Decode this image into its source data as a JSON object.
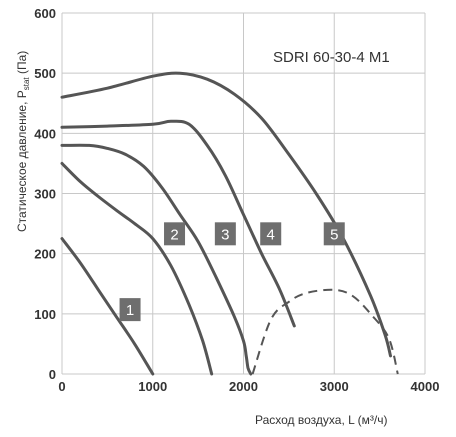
{
  "chart_data": {
    "type": "line",
    "model_label": "SDRI 60-30-4 M1",
    "xlabel": "Расход воздуха, L (м³/ч)",
    "ylabel_main": "Статическое давление, P",
    "ylabel_sub": "stat",
    "ylabel_unit": " (Па)",
    "xlim": [
      0,
      4000
    ],
    "ylim": [
      0,
      600
    ],
    "x_ticks": [
      "0",
      "1000",
      "2000",
      "3000",
      "4000"
    ],
    "y_ticks": [
      "0",
      "100",
      "200",
      "300",
      "400",
      "500",
      "600"
    ],
    "grid": true,
    "series": [
      {
        "name": "1",
        "points": [
          [
            0,
            225
          ],
          [
            200,
            185
          ],
          [
            400,
            140
          ],
          [
            600,
            95
          ],
          [
            800,
            50
          ],
          [
            1000,
            0
          ]
        ]
      },
      {
        "name": "2",
        "points": [
          [
            0,
            350
          ],
          [
            200,
            320
          ],
          [
            400,
            295
          ],
          [
            600,
            272
          ],
          [
            800,
            250
          ],
          [
            1000,
            225
          ],
          [
            1200,
            180
          ],
          [
            1400,
            115
          ],
          [
            1550,
            55
          ],
          [
            1650,
            0
          ]
        ]
      },
      {
        "name": "3",
        "points": [
          [
            0,
            380
          ],
          [
            300,
            380
          ],
          [
            500,
            375
          ],
          [
            700,
            365
          ],
          [
            900,
            345
          ],
          [
            1100,
            310
          ],
          [
            1300,
            265
          ],
          [
            1500,
            220
          ],
          [
            1700,
            160
          ],
          [
            1900,
            95
          ],
          [
            2000,
            55
          ],
          [
            2030,
            30
          ],
          [
            2050,
            10
          ],
          [
            2080,
            0
          ]
        ]
      },
      {
        "name": "4",
        "points": [
          [
            0,
            410
          ],
          [
            500,
            412
          ],
          [
            1000,
            415
          ],
          [
            1200,
            420
          ],
          [
            1400,
            415
          ],
          [
            1600,
            380
          ],
          [
            1800,
            330
          ],
          [
            2000,
            265
          ],
          [
            2200,
            200
          ],
          [
            2400,
            140
          ],
          [
            2560,
            80
          ]
        ]
      },
      {
        "name": "5",
        "points": [
          [
            0,
            460
          ],
          [
            500,
            475
          ],
          [
            1000,
            495
          ],
          [
            1300,
            500
          ],
          [
            1600,
            490
          ],
          [
            1900,
            465
          ],
          [
            2200,
            425
          ],
          [
            2500,
            365
          ],
          [
            2800,
            300
          ],
          [
            3100,
            225
          ],
          [
            3400,
            130
          ],
          [
            3560,
            65
          ],
          [
            3620,
            30
          ]
        ]
      }
    ],
    "dashed_curve": {
      "points": [
        [
          2100,
          0
        ],
        [
          2300,
          90
        ],
        [
          2500,
          120
        ],
        [
          2700,
          135
        ],
        [
          3000,
          140
        ],
        [
          3200,
          130
        ],
        [
          3400,
          100
        ],
        [
          3600,
          60
        ],
        [
          3700,
          0
        ]
      ]
    },
    "badges": [
      {
        "label": "1",
        "x": 750,
        "y": 107
      },
      {
        "label": "2",
        "x": 1240,
        "y": 233
      },
      {
        "label": "3",
        "x": 1800,
        "y": 233
      },
      {
        "label": "4",
        "x": 2300,
        "y": 233
      },
      {
        "label": "5",
        "x": 3000,
        "y": 233
      }
    ],
    "colors": {
      "line": "#555555",
      "grid": "#c8c8c8",
      "badge": "#6e6e6e"
    }
  }
}
